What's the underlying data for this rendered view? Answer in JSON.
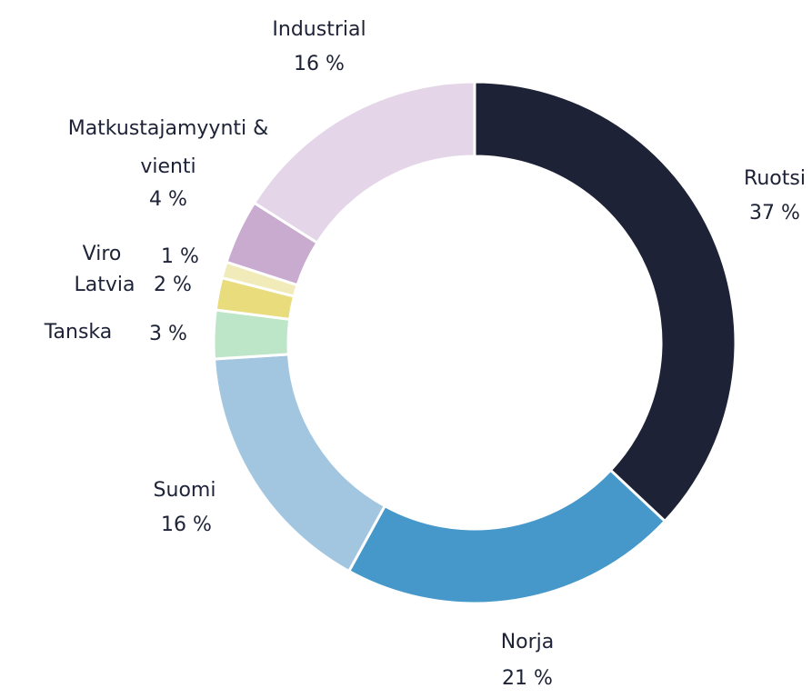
{
  "chart_data": {
    "type": "donut",
    "categories": [
      "Ruotsi",
      "Norja",
      "Suomi",
      "Tanska",
      "Latvia",
      "Viro",
      "Matkustajamyynti & vienti",
      "Industrial"
    ],
    "values": [
      37,
      21,
      16,
      3,
      2,
      1,
      4,
      16
    ],
    "value_labels": [
      "37 %",
      "21 %",
      "16 %",
      "3 %",
      "2 %",
      "1 %",
      "4 %",
      "16 %"
    ],
    "colors": [
      "#1d2236",
      "#4598c9",
      "#a3c6e0",
      "#bde6c8",
      "#e8dc7c",
      "#f0ebb9",
      "#c9abcf",
      "#e4d6e8"
    ]
  }
}
